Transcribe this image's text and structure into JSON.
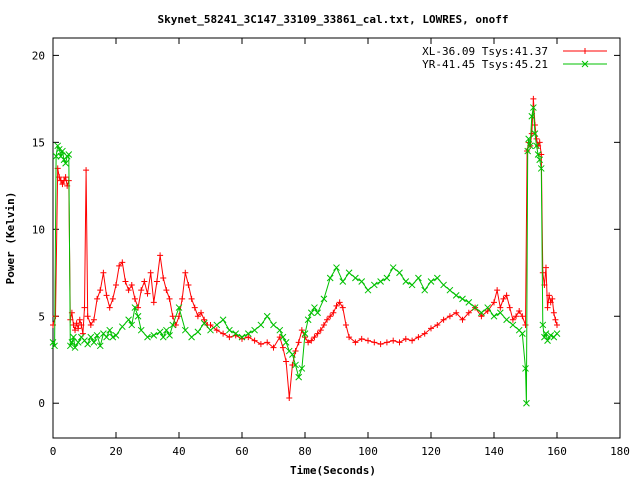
{
  "chart_data": {
    "type": "line",
    "title": "Skynet_58241_3C147_33109_33861_cal.txt, LOWRES, onoff",
    "xlabel": "Time(Seconds)",
    "ylabel": "Power (Kelvin)",
    "xlim": [
      0,
      180
    ],
    "ylim": [
      -2,
      21
    ],
    "x_ticks": [
      0,
      20,
      40,
      60,
      80,
      100,
      120,
      140,
      160,
      180
    ],
    "y_ticks": [
      0,
      5,
      10,
      15,
      20
    ],
    "grid": false,
    "legend_position": "top-right",
    "series": [
      {
        "name": "XL-36.09 Tsys:41.37",
        "color": "#ff0000",
        "marker": "plus",
        "x": [
          0,
          0.8,
          1.5,
          2,
          2.5,
          3,
          3.5,
          4,
          4.5,
          5,
          5.5,
          6,
          6.5,
          7,
          7.5,
          8,
          8.5,
          9,
          9.5,
          10,
          10.5,
          11,
          12,
          13,
          14,
          15,
          16,
          17,
          18,
          19,
          20,
          21,
          22,
          23,
          24,
          25,
          26,
          27,
          28,
          29,
          30,
          31,
          32,
          33,
          34,
          35,
          36,
          37,
          38,
          39,
          40,
          41,
          42,
          43,
          44,
          45,
          46,
          47,
          48,
          49,
          50,
          52,
          54,
          56,
          58,
          60,
          62,
          64,
          66,
          68,
          70,
          72,
          73,
          74,
          75,
          76,
          77,
          78,
          79,
          80,
          81,
          82,
          83,
          84,
          85,
          86,
          87,
          88,
          89,
          90,
          91,
          92,
          93,
          94,
          96,
          98,
          100,
          102,
          104,
          106,
          108,
          110,
          112,
          114,
          116,
          118,
          120,
          122,
          124,
          126,
          128,
          130,
          132,
          134,
          136,
          138,
          140,
          141,
          142,
          143,
          144,
          145,
          146,
          147,
          148,
          149,
          150,
          150.5,
          151,
          151.5,
          152,
          152.5,
          153,
          153.5,
          154,
          154.5,
          155,
          155.5,
          156,
          156.5,
          157,
          157.5,
          158,
          158.5,
          159,
          159.5,
          160
        ],
        "y": [
          4.5,
          5.0,
          13.5,
          13.0,
          12.8,
          12.6,
          12.8,
          13.0,
          12.5,
          12.8,
          4.8,
          5.2,
          4.5,
          4.2,
          4.6,
          4.3,
          4.8,
          4.5,
          4.0,
          5.5,
          13.4,
          5.0,
          4.5,
          4.8,
          6.0,
          6.5,
          7.5,
          6.2,
          5.5,
          6.0,
          6.8,
          7.9,
          8.1,
          7.0,
          6.5,
          6.8,
          6.0,
          5.5,
          6.5,
          7.0,
          6.3,
          7.5,
          5.8,
          7.0,
          8.5,
          7.2,
          6.5,
          6.0,
          5.0,
          4.5,
          5.0,
          6.0,
          7.5,
          6.8,
          6.0,
          5.5,
          5.0,
          5.2,
          4.8,
          4.5,
          4.5,
          4.2,
          4.0,
          3.8,
          3.9,
          3.7,
          3.8,
          3.6,
          3.4,
          3.5,
          3.2,
          3.8,
          3.2,
          2.4,
          0.3,
          2.2,
          3.0,
          3.5,
          4.2,
          3.8,
          3.5,
          3.6,
          3.8,
          4.0,
          4.2,
          4.5,
          4.8,
          5.0,
          5.2,
          5.6,
          5.8,
          5.5,
          4.5,
          3.8,
          3.5,
          3.7,
          3.6,
          3.5,
          3.4,
          3.5,
          3.6,
          3.5,
          3.7,
          3.6,
          3.8,
          4.0,
          4.3,
          4.5,
          4.8,
          5.0,
          5.2,
          4.8,
          5.2,
          5.5,
          5.0,
          5.3,
          5.8,
          6.5,
          5.5,
          6.0,
          6.2,
          5.5,
          4.8,
          5.0,
          5.3,
          5.0,
          4.5,
          14.5,
          15.0,
          14.8,
          15.5,
          17.5,
          16.0,
          15.2,
          14.8,
          15.0,
          14.3,
          7.5,
          6.8,
          7.8,
          5.5,
          6.2,
          5.8,
          6.0,
          5.2,
          4.8,
          4.5
        ]
      },
      {
        "name": "YR-41.45 Tsys:45.21",
        "color": "#00c000",
        "marker": "cross",
        "x": [
          0,
          0.5,
          1,
          1.5,
          2,
          2.5,
          3,
          3.5,
          4,
          4.5,
          5,
          5.5,
          6,
          6.5,
          7,
          8,
          9,
          10,
          11,
          12,
          13,
          14,
          15,
          16,
          17,
          18,
          19,
          20,
          22,
          24,
          25,
          26,
          27,
          28,
          30,
          32,
          34,
          35,
          36,
          37,
          38,
          40,
          42,
          44,
          46,
          48,
          50,
          52,
          54,
          56,
          58,
          60,
          62,
          64,
          66,
          68,
          70,
          72,
          73,
          74,
          75,
          76,
          77,
          78,
          79,
          80,
          81,
          82,
          83,
          84,
          86,
          88,
          90,
          92,
          94,
          96,
          98,
          100,
          102,
          104,
          106,
          108,
          110,
          112,
          114,
          116,
          118,
          120,
          122,
          124,
          126,
          128,
          130,
          132,
          134,
          136,
          138,
          140,
          142,
          144,
          146,
          148,
          149,
          150,
          150.3,
          150.7,
          151,
          151.5,
          152,
          152.5,
          153,
          153.5,
          154,
          154.5,
          155,
          155.5,
          156,
          156.5,
          157,
          158,
          159,
          160
        ],
        "y": [
          3.5,
          3.3,
          14.2,
          14.8,
          14.6,
          14.2,
          14.5,
          14.0,
          13.8,
          14.2,
          14.3,
          3.3,
          3.5,
          3.8,
          3.2,
          3.5,
          3.8,
          3.6,
          3.4,
          3.8,
          3.5,
          3.9,
          3.3,
          4.0,
          3.8,
          4.2,
          3.8,
          3.9,
          4.4,
          4.8,
          4.5,
          5.5,
          5.0,
          4.2,
          3.8,
          3.9,
          4.1,
          3.8,
          4.2,
          3.9,
          4.5,
          5.5,
          4.2,
          3.8,
          4.1,
          4.6,
          4.2,
          4.5,
          4.8,
          4.2,
          4.0,
          3.8,
          4.0,
          4.2,
          4.5,
          5.0,
          4.5,
          4.2,
          3.8,
          3.5,
          3.0,
          2.8,
          2.2,
          1.5,
          2.0,
          4.0,
          4.8,
          5.2,
          5.5,
          5.2,
          6.0,
          7.2,
          7.8,
          7.0,
          7.5,
          7.2,
          7.0,
          6.5,
          6.8,
          7.0,
          7.2,
          7.8,
          7.5,
          7.0,
          6.8,
          7.2,
          6.5,
          7.0,
          7.2,
          6.8,
          6.5,
          6.2,
          6.0,
          5.8,
          5.5,
          5.2,
          5.5,
          5.0,
          5.2,
          4.8,
          4.5,
          4.2,
          4.0,
          2.0,
          0.0,
          14.5,
          15.2,
          14.8,
          16.5,
          17.0,
          15.5,
          14.8,
          14.3,
          14.0,
          13.5,
          4.5,
          3.8,
          4.0,
          3.6,
          3.9,
          3.8,
          4.0
        ]
      }
    ]
  }
}
